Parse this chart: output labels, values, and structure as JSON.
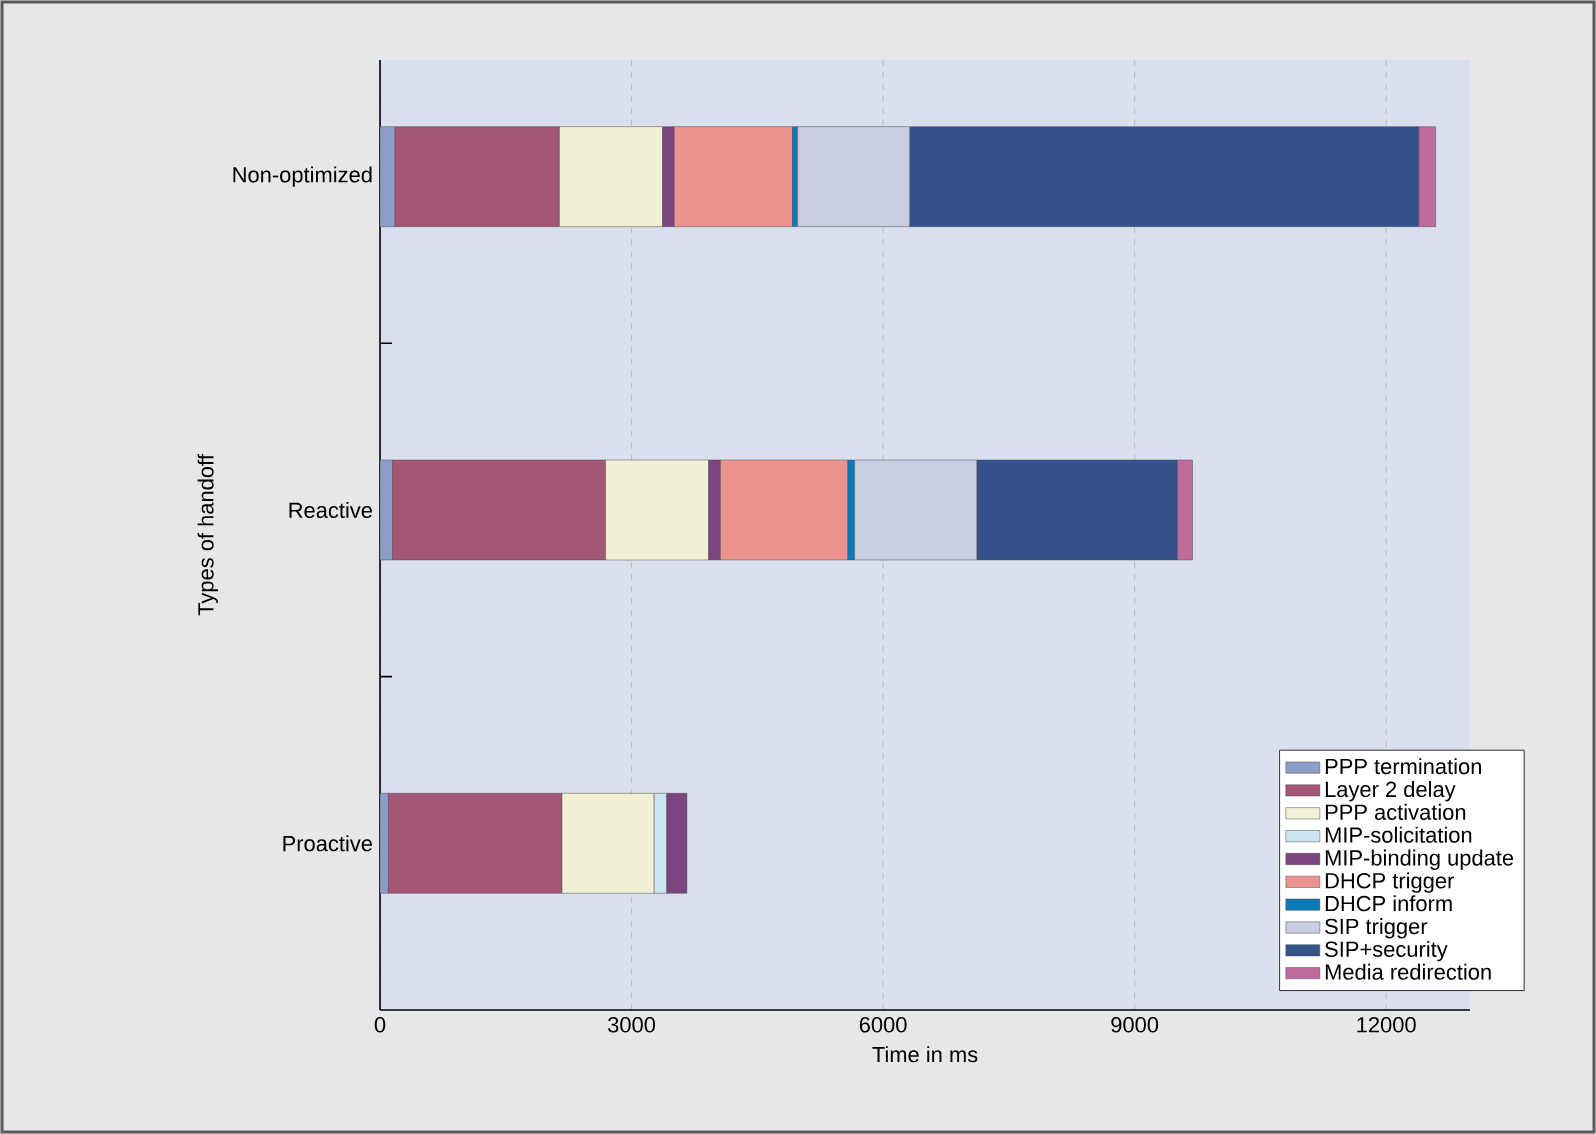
{
  "chart_data": {
    "type": "bar",
    "orientation": "horizontal",
    "stacked": true,
    "xlabel": "Time in ms",
    "ylabel": "Types of handoff",
    "categories": [
      "Non-optimized",
      "Reactive",
      "Proactive"
    ],
    "series": [
      {
        "name": "PPP termination",
        "color": "#8b9dc8",
        "values": [
          180,
          150,
          100
        ]
      },
      {
        "name": "Layer 2 delay",
        "color": "#a55576",
        "values": [
          1960,
          2540,
          2070
        ]
      },
      {
        "name": "PPP activation",
        "color": "#f2f0d4",
        "values": [
          1230,
          1230,
          1100
        ]
      },
      {
        "name": "MIP-solicitation",
        "color": "#cce5ee",
        "values": [
          null,
          null,
          150
        ]
      },
      {
        "name": "MIP-binding update",
        "color": "#7c4581",
        "values": [
          140,
          140,
          240
        ]
      },
      {
        "name": "DHCP trigger",
        "color": "#ec9390",
        "values": [
          1410,
          1520,
          null
        ]
      },
      {
        "name": "DHCP inform",
        "color": "#0a7ab8",
        "values": [
          60,
          80,
          null
        ]
      },
      {
        "name": "SIP trigger",
        "color": "#c8cde2",
        "values": [
          1340,
          1460,
          null
        ]
      },
      {
        "name": "SIP+security",
        "color": "#35528a",
        "values": [
          6070,
          2390,
          null
        ]
      },
      {
        "name": "Media redirection",
        "color": "#c06aa0",
        "values": [
          200,
          180,
          null
        ]
      }
    ],
    "xlim": [
      0,
      13000
    ],
    "xticks": [
      0,
      3000,
      6000,
      9000,
      12000
    ],
    "grid": "x",
    "legend": "bottom right"
  }
}
